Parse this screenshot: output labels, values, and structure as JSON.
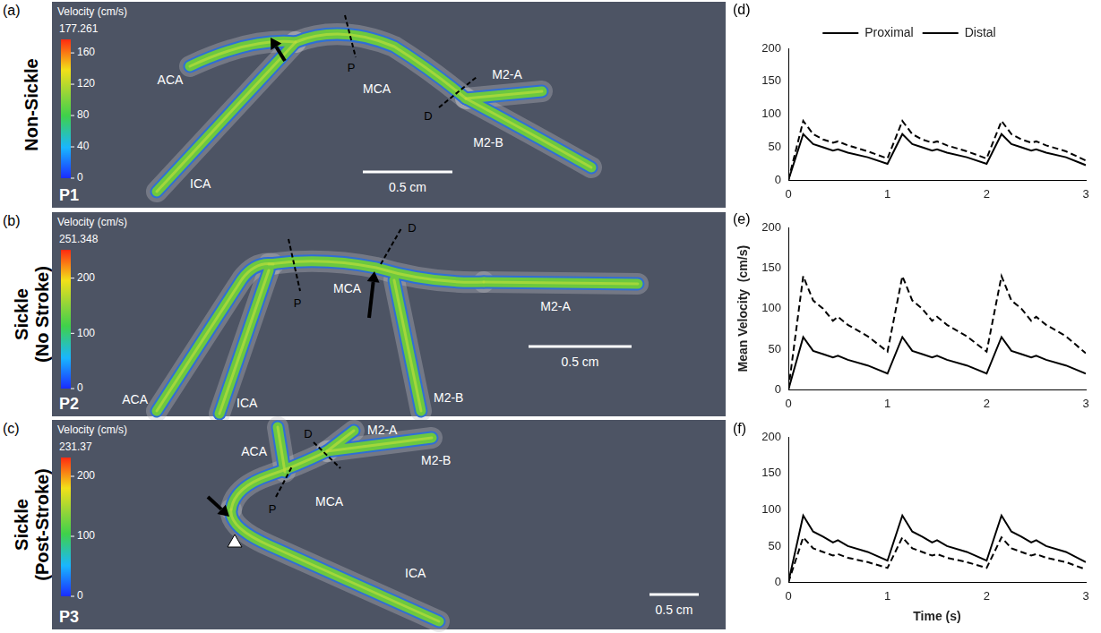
{
  "images": [
    {
      "letter": "(a)",
      "row_label": "Non-Sickle",
      "patient": "P1",
      "colorbar": {
        "title": "Velocity (cm/s)",
        "max": 177.261,
        "ticks": [
          0,
          40,
          80,
          120,
          160
        ]
      },
      "vessels": [
        "ACA",
        "MCA",
        "ICA",
        "M2-A",
        "M2-B"
      ],
      "sections": [
        "P",
        "D"
      ],
      "scale_bar": "0.5 cm"
    },
    {
      "letter": "(b)",
      "row_label": "Sickle (No Stroke)",
      "patient": "P2",
      "colorbar": {
        "title": "Velocity (cm/s)",
        "max": 251.348,
        "ticks": [
          0,
          100,
          200
        ]
      },
      "vessels": [
        "ACA",
        "ICA",
        "MCA",
        "M2-A",
        "M2-B"
      ],
      "sections": [
        "P",
        "D"
      ],
      "scale_bar": "0.5 cm"
    },
    {
      "letter": "(c)",
      "row_label": "Sickle (Post-Stroke)",
      "patient": "P3",
      "colorbar": {
        "title": "Velocity (cm/s)",
        "max": 231.37,
        "ticks": [
          0,
          100,
          200
        ]
      },
      "vessels": [
        "ACA",
        "M2-A",
        "M2-B",
        "MCA",
        "ICA"
      ],
      "sections": [
        "P",
        "D"
      ],
      "scale_bar": "0.5 cm"
    }
  ],
  "chart_data": [
    {
      "letter": "(d)",
      "type": "line",
      "x": [
        0,
        0.15,
        0.25,
        0.35,
        0.45,
        0.5,
        0.6,
        0.8,
        1.0,
        1.15,
        1.25,
        1.35,
        1.45,
        1.5,
        1.6,
        1.8,
        2.0,
        2.15,
        2.25,
        2.35,
        2.45,
        2.5,
        2.6,
        2.8,
        3.0
      ],
      "series": [
        {
          "name": "Proximal",
          "color": "#000000",
          "line_style": "solid",
          "marker": "none",
          "values": [
            0,
            70,
            55,
            50,
            45,
            47,
            42,
            35,
            25,
            70,
            55,
            50,
            45,
            47,
            42,
            35,
            25,
            70,
            55,
            50,
            45,
            47,
            42,
            35,
            23
          ]
        },
        {
          "name": "Distal",
          "color": "#000000",
          "line_style": "dashed",
          "marker": "none",
          "values": [
            0,
            90,
            70,
            62,
            57,
            59,
            53,
            44,
            33,
            90,
            70,
            62,
            57,
            59,
            53,
            44,
            33,
            90,
            70,
            62,
            57,
            59,
            53,
            44,
            30
          ]
        }
      ],
      "xlim": [
        0,
        3
      ],
      "xticks": [
        0,
        1,
        2,
        3
      ],
      "ylim": [
        0,
        200
      ],
      "yticks": [
        0,
        50,
        100,
        150,
        200
      ],
      "grid": false,
      "legend": "top"
    },
    {
      "letter": "(e)",
      "type": "line",
      "y_label": "Mean Velocity  (cm/s)",
      "x": [
        0,
        0.15,
        0.25,
        0.35,
        0.45,
        0.5,
        0.6,
        0.8,
        1.0,
        1.15,
        1.25,
        1.35,
        1.45,
        1.5,
        1.6,
        1.8,
        2.0,
        2.15,
        2.25,
        2.35,
        2.45,
        2.5,
        2.6,
        2.8,
        3.0
      ],
      "series": [
        {
          "name": "Proximal",
          "color": "#000000",
          "line_style": "solid",
          "marker": "none",
          "values": [
            0,
            65,
            48,
            44,
            40,
            42,
            37,
            30,
            20,
            65,
            48,
            44,
            40,
            42,
            37,
            30,
            20,
            65,
            48,
            44,
            40,
            42,
            37,
            30,
            20
          ]
        },
        {
          "name": "Distal",
          "color": "#000000",
          "line_style": "dashed",
          "marker": "none",
          "values": [
            0,
            140,
            110,
            100,
            85,
            90,
            80,
            66,
            47,
            140,
            110,
            100,
            85,
            90,
            80,
            66,
            47,
            140,
            110,
            100,
            85,
            90,
            80,
            66,
            45
          ]
        }
      ],
      "xlim": [
        0,
        3
      ],
      "xticks": [
        0,
        1,
        2,
        3
      ],
      "ylim": [
        0,
        200
      ],
      "yticks": [
        0,
        50,
        100,
        150,
        200
      ],
      "grid": false
    },
    {
      "letter": "(f)",
      "type": "line",
      "x_label": "Time (s)",
      "x": [
        0,
        0.15,
        0.25,
        0.35,
        0.45,
        0.5,
        0.6,
        0.8,
        1.0,
        1.15,
        1.25,
        1.35,
        1.45,
        1.5,
        1.6,
        1.8,
        2.0,
        2.15,
        2.25,
        2.35,
        2.45,
        2.5,
        2.6,
        2.8,
        3.0
      ],
      "series": [
        {
          "name": "Proximal",
          "color": "#000000",
          "line_style": "solid",
          "marker": "none",
          "values": [
            0,
            92,
            70,
            63,
            55,
            58,
            50,
            42,
            30,
            92,
            70,
            63,
            55,
            58,
            50,
            42,
            30,
            92,
            70,
            63,
            55,
            58,
            50,
            42,
            28
          ]
        },
        {
          "name": "Distal",
          "color": "#000000",
          "line_style": "dashed",
          "marker": "none",
          "values": [
            0,
            62,
            47,
            42,
            37,
            39,
            34,
            28,
            20,
            62,
            47,
            42,
            37,
            39,
            34,
            28,
            20,
            62,
            47,
            42,
            37,
            39,
            34,
            28,
            18
          ]
        }
      ],
      "xlim": [
        0,
        3
      ],
      "xticks": [
        0,
        1,
        2,
        3
      ],
      "ylim": [
        0,
        200
      ],
      "yticks": [
        0,
        50,
        100,
        150,
        200
      ],
      "grid": false
    }
  ]
}
